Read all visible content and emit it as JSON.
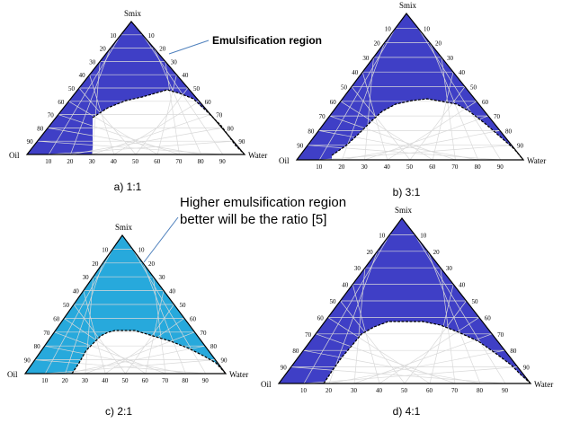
{
  "callouts": {
    "emulsification_label": "Emulsification region",
    "ratio_note_line1": "Higher  emulsification region",
    "ratio_note_line2": "better will be the ratio [5]"
  },
  "vertex_labels": {
    "top": "Smix",
    "left": "Oil",
    "right": "Water"
  },
  "tick_labels": [
    "10",
    "20",
    "30",
    "40",
    "50",
    "60",
    "70",
    "80",
    "90"
  ],
  "colors": {
    "region_blue": "#3f3fc6",
    "region_cyan": "#27a9dc",
    "grid_line": "#d9d9d9",
    "outline": "#000000",
    "callout_line": "#4f81bd"
  },
  "diagrams": [
    {
      "caption": "a) 1:1",
      "fill_color": "#3f3fc6"
    },
    {
      "caption": "b) 3:1",
      "fill_color": "#3f3fc6"
    },
    {
      "caption": "c) 2:1",
      "fill_color": "#27a9dc"
    },
    {
      "caption": "d) 4:1",
      "fill_color": "#3f3fc6"
    }
  ]
}
